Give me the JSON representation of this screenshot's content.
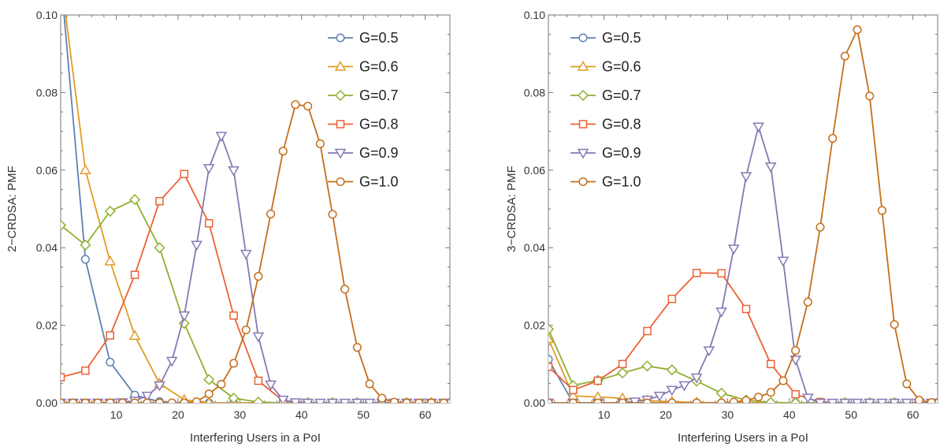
{
  "chart_data": [
    {
      "type": "line",
      "title": "",
      "xlabel": "Interfering Users in a PoI",
      "ylabel": "2−CRDSA: PMF",
      "xlim": [
        1,
        64
      ],
      "ylim": [
        0,
        0.1
      ],
      "x_ticks": [
        "10",
        "20",
        "30",
        "40",
        "50",
        "60"
      ],
      "y_ticks": [
        "0.00",
        "0.02",
        "0.04",
        "0.06",
        "0.08",
        "0.10"
      ],
      "grid": false,
      "legend_position": "top-right",
      "series": [
        {
          "name": "G=0.5",
          "color": "#5E81B5",
          "marker": "circle",
          "x": [
            1,
            5,
            9,
            13,
            17,
            21,
            25,
            29,
            33,
            37,
            41,
            45,
            49,
            53,
            57,
            61,
            64
          ],
          "y": [
            0.11,
            0.037,
            0.0105,
            0.002,
            0.0003,
            0,
            0,
            0,
            0,
            0,
            0,
            0,
            0,
            0,
            0,
            0,
            0
          ]
        },
        {
          "name": "G=0.6",
          "color": "#E19C24",
          "marker": "triangle-up",
          "x": [
            1,
            5,
            9,
            13,
            17,
            21,
            25,
            29,
            33,
            37,
            41,
            45,
            49,
            53,
            57,
            61,
            64
          ],
          "y": [
            0.11,
            0.06,
            0.0365,
            0.0173,
            0.005,
            0.0008,
            0,
            0,
            0,
            0,
            0,
            0,
            0,
            0,
            0,
            0,
            0
          ]
        },
        {
          "name": "G=0.7",
          "color": "#8FB032",
          "marker": "diamond",
          "x": [
            1,
            5,
            9,
            13,
            17,
            21,
            25,
            29,
            33,
            37,
            41,
            45,
            49,
            53,
            57,
            61,
            64
          ],
          "y": [
            0.0458,
            0.0407,
            0.0494,
            0.0524,
            0.04,
            0.0205,
            0.006,
            0.0012,
            0.0002,
            0,
            0,
            0,
            0,
            0,
            0,
            0,
            0
          ]
        },
        {
          "name": "G=0.8",
          "color": "#EB6235",
          "marker": "square",
          "x": [
            1,
            5,
            9,
            13,
            17,
            21,
            25,
            29,
            33,
            37,
            41,
            45,
            49,
            53,
            57,
            61,
            64
          ],
          "y": [
            0.0066,
            0.0083,
            0.0174,
            0.033,
            0.052,
            0.059,
            0.0463,
            0.0225,
            0.0057,
            0.0005,
            0,
            0,
            0,
            0,
            0,
            0,
            0
          ]
        },
        {
          "name": "G=0.9",
          "color": "#8778B3",
          "marker": "triangle-down",
          "x": [
            1,
            3,
            5,
            7,
            9,
            11,
            13,
            15,
            17,
            19,
            21,
            23,
            25,
            27,
            29,
            31,
            33,
            35,
            37,
            39,
            41,
            43,
            45,
            47,
            49,
            51,
            53,
            55,
            57,
            59,
            61,
            63
          ],
          "y": [
            0,
            0,
            0,
            0,
            0,
            0.0001,
            0.0005,
            0.0018,
            0.0045,
            0.0108,
            0.0225,
            0.0407,
            0.0605,
            0.0688,
            0.0599,
            0.0384,
            0.0171,
            0.0047,
            0.0008,
            0.0001,
            0,
            0,
            0,
            0,
            0,
            0,
            0,
            0,
            0,
            0,
            0,
            0
          ]
        },
        {
          "name": "G=1.0",
          "color": "#C56E1A",
          "marker": "circle",
          "x": [
            1,
            3,
            5,
            7,
            9,
            11,
            13,
            15,
            17,
            19,
            21,
            23,
            25,
            27,
            29,
            31,
            33,
            35,
            37,
            39,
            41,
            43,
            45,
            47,
            49,
            51,
            53,
            55,
            57,
            59,
            61,
            63
          ],
          "y": [
            0,
            0,
            0,
            0,
            0,
            0,
            0,
            0,
            0,
            0,
            0,
            0.0003,
            0.0023,
            0.0048,
            0.0102,
            0.0188,
            0.0326,
            0.0487,
            0.0649,
            0.0769,
            0.0765,
            0.0668,
            0.0486,
            0.0293,
            0.0143,
            0.0049,
            0.0012,
            0.0002,
            0,
            0,
            0,
            0
          ]
        }
      ]
    },
    {
      "type": "line",
      "title": "",
      "xlabel": "Interfering Users in a PoI",
      "ylabel": "3−CRDSA: PMF",
      "xlim": [
        1,
        64
      ],
      "ylim": [
        0,
        0.1
      ],
      "x_ticks": [
        "10",
        "20",
        "30",
        "40",
        "50",
        "60"
      ],
      "y_ticks": [
        "0.00",
        "0.02",
        "0.04",
        "0.06",
        "0.08",
        "0.10"
      ],
      "grid": false,
      "legend_position": "top-left",
      "series": [
        {
          "name": "G=0.5",
          "color": "#5E81B5",
          "marker": "circle",
          "x": [
            1,
            5,
            9,
            13,
            17,
            21,
            25,
            29,
            33,
            37,
            41,
            45,
            49,
            53,
            57,
            61,
            64
          ],
          "y": [
            0.0112,
            0,
            0,
            0,
            0,
            0,
            0,
            0,
            0,
            0,
            0,
            0,
            0,
            0,
            0,
            0,
            0
          ]
        },
        {
          "name": "G=0.6",
          "color": "#E19C24",
          "marker": "triangle-up",
          "x": [
            1,
            5,
            9,
            13,
            17,
            21,
            25,
            29,
            33,
            37,
            41,
            45,
            49,
            53,
            57,
            61,
            64
          ],
          "y": [
            0.0165,
            0.0018,
            0.0015,
            0.0012,
            0.0006,
            0.0003,
            0.0001,
            0,
            0,
            0,
            0,
            0,
            0,
            0,
            0,
            0,
            0
          ]
        },
        {
          "name": "G=0.7",
          "color": "#8FB032",
          "marker": "diamond",
          "x": [
            1,
            5,
            9,
            13,
            17,
            21,
            25,
            29,
            33,
            37,
            41,
            45,
            49,
            53,
            57,
            61,
            64
          ],
          "y": [
            0.019,
            0.0045,
            0.0058,
            0.0077,
            0.0095,
            0.0085,
            0.0056,
            0.0025,
            0.0007,
            0.0001,
            0,
            0,
            0,
            0,
            0,
            0,
            0
          ]
        },
        {
          "name": "G=0.8",
          "color": "#EB6235",
          "marker": "square",
          "x": [
            1,
            5,
            9,
            13,
            17,
            21,
            25,
            29,
            33,
            37,
            41,
            45,
            49,
            53,
            57,
            61,
            64
          ],
          "y": [
            0.0093,
            0.0033,
            0.0057,
            0.01,
            0.0185,
            0.0268,
            0.0335,
            0.0334,
            0.0242,
            0.01,
            0.0022,
            0.0002,
            0,
            0,
            0,
            0,
            0
          ]
        },
        {
          "name": "G=0.9",
          "color": "#8778B3",
          "marker": "triangle-down",
          "x": [
            1,
            5,
            9,
            13,
            15,
            17,
            19,
            21,
            23,
            25,
            27,
            29,
            31,
            33,
            35,
            37,
            39,
            41,
            43,
            45,
            47,
            49,
            51,
            53,
            55,
            57,
            59,
            61,
            63
          ],
          "y": [
            0,
            0,
            0,
            0,
            0.0003,
            0.0008,
            0.0018,
            0.0033,
            0.0045,
            0.0065,
            0.0135,
            0.0235,
            0.0397,
            0.0584,
            0.0712,
            0.0609,
            0.0366,
            0.0111,
            0.0013,
            0,
            0,
            0,
            0,
            0,
            0,
            0,
            0,
            0,
            0
          ]
        },
        {
          "name": "G=1.0",
          "color": "#C56E1A",
          "marker": "circle",
          "x": [
            1,
            5,
            9,
            13,
            17,
            21,
            25,
            29,
            31,
            33,
            35,
            37,
            39,
            41,
            43,
            45,
            47,
            49,
            51,
            53,
            55,
            57,
            59,
            61,
            63
          ],
          "y": [
            0,
            0,
            0,
            0,
            0,
            0,
            0,
            0,
            0.0002,
            0.0006,
            0.0015,
            0.0027,
            0.0057,
            0.0135,
            0.026,
            0.0453,
            0.0682,
            0.0894,
            0.0962,
            0.0791,
            0.0496,
            0.0202,
            0.0049,
            0.0007,
            0.0001
          ]
        }
      ]
    }
  ]
}
